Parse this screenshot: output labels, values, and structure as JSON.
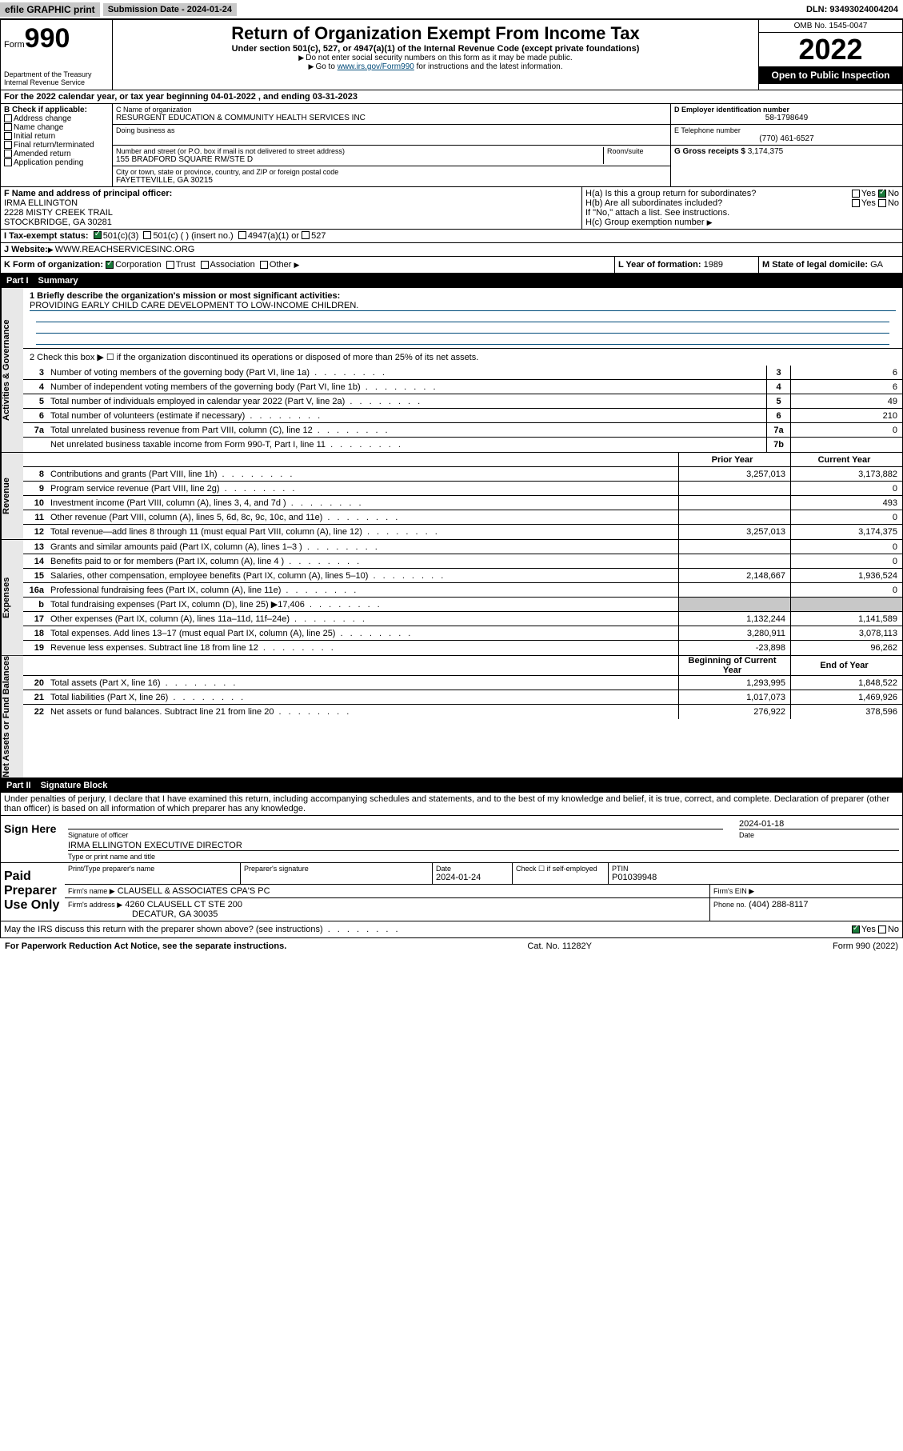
{
  "top": {
    "efile": "efile GRAPHIC print",
    "submission": "Submission Date - 2024-01-24",
    "dln": "DLN: 93493024004204"
  },
  "header": {
    "form_label": "Form",
    "form_number": "990",
    "dept": "Department of the Treasury Internal Revenue Service",
    "title": "Return of Organization Exempt From Income Tax",
    "subtitle": "Under section 501(c), 527, or 4947(a)(1) of the Internal Revenue Code (except private foundations)",
    "note1": "Do not enter social security numbers on this form as it may be made public.",
    "note2_prefix": "Go to ",
    "note2_link": "www.irs.gov/Form990",
    "note2_suffix": " for instructions and the latest information.",
    "omb": "OMB No. 1545-0047",
    "year": "2022",
    "open": "Open to Public Inspection"
  },
  "section_a": "For the 2022 calendar year, or tax year beginning 04-01-2022  , and ending 03-31-2023",
  "section_b": {
    "label": "B Check if applicable:",
    "opts": [
      "Address change",
      "Name change",
      "Initial return",
      "Final return/terminated",
      "Amended return",
      "Application pending"
    ]
  },
  "section_c": {
    "name_label": "C Name of organization",
    "name": "RESURGENT EDUCATION & COMMUNITY HEALTH SERVICES INC",
    "dba_label": "Doing business as",
    "street_label": "Number and street (or P.O. box if mail is not delivered to street address)",
    "room_label": "Room/suite",
    "street": "155 BRADFORD SQUARE RM/STE D",
    "city_label": "City or town, state or province, country, and ZIP or foreign postal code",
    "city": "FAYETTEVILLE, GA  30215"
  },
  "section_d": {
    "label": "D Employer identification number",
    "value": "58-1798649"
  },
  "section_e": {
    "label": "E Telephone number",
    "value": "(770) 461-6527"
  },
  "section_g": {
    "label": "G Gross receipts $",
    "value": "3,174,375"
  },
  "section_f": {
    "label": "F  Name and address of principal officer:",
    "name": "IRMA ELLINGTON",
    "addr1": "2228 MISTY CREEK TRAIL",
    "addr2": "STOCKBRIDGE, GA  30281"
  },
  "section_h": {
    "ha": "H(a)  Is this a group return for subordinates?",
    "hb": "H(b)  Are all subordinates included?",
    "hb_note": "If \"No,\" attach a list. See instructions.",
    "hc": "H(c)  Group exemption number",
    "yes": "Yes",
    "no": "No"
  },
  "section_i": {
    "label": "I  Tax-exempt status:",
    "opts": [
      "501(c)(3)",
      "501(c) (  )  (insert no.)",
      "4947(a)(1) or",
      "527"
    ]
  },
  "section_j": {
    "label": "J  Website:",
    "value": "WWW.REACHSERVICESINC.ORG"
  },
  "section_k": {
    "label": "K Form of organization:",
    "opts": [
      "Corporation",
      "Trust",
      "Association",
      "Other"
    ]
  },
  "section_l": {
    "label": "L Year of formation:",
    "value": "1989"
  },
  "section_m": {
    "label": "M State of legal domicile:",
    "value": "GA"
  },
  "part1": {
    "header_label": "Part I",
    "header_title": "Summary",
    "tabs": {
      "gov": "Activities & Governance",
      "rev": "Revenue",
      "exp": "Expenses",
      "net": "Net Assets or Fund Balances"
    },
    "line1_label": "1  Briefly describe the organization's mission or most significant activities:",
    "line1_text": "PROVIDING EARLY CHILD CARE DEVELOPMENT TO LOW-INCOME CHILDREN.",
    "line2": "2  Check this box ▶ ☐  if the organization discontinued its operations or disposed of more than 25% of its net assets.",
    "lines_gov": [
      {
        "n": "3",
        "desc": "Number of voting members of the governing body (Part VI, line 1a)",
        "box": "3",
        "val": "6"
      },
      {
        "n": "4",
        "desc": "Number of independent voting members of the governing body (Part VI, line 1b)",
        "box": "4",
        "val": "6"
      },
      {
        "n": "5",
        "desc": "Total number of individuals employed in calendar year 2022 (Part V, line 2a)",
        "box": "5",
        "val": "49"
      },
      {
        "n": "6",
        "desc": "Total number of volunteers (estimate if necessary)",
        "box": "6",
        "val": "210"
      },
      {
        "n": "7a",
        "desc": "Total unrelated business revenue from Part VIII, column (C), line 12",
        "box": "7a",
        "val": "0"
      },
      {
        "n": "",
        "desc": "Net unrelated business taxable income from Form 990-T, Part I, line 11",
        "box": "7b",
        "val": ""
      }
    ],
    "col_prior": "Prior Year",
    "col_current": "Current Year",
    "lines_rev": [
      {
        "n": "8",
        "desc": "Contributions and grants (Part VIII, line 1h)",
        "p": "3,257,013",
        "c": "3,173,882"
      },
      {
        "n": "9",
        "desc": "Program service revenue (Part VIII, line 2g)",
        "p": "",
        "c": "0"
      },
      {
        "n": "10",
        "desc": "Investment income (Part VIII, column (A), lines 3, 4, and 7d )",
        "p": "",
        "c": "493"
      },
      {
        "n": "11",
        "desc": "Other revenue (Part VIII, column (A), lines 5, 6d, 8c, 9c, 10c, and 11e)",
        "p": "",
        "c": "0"
      },
      {
        "n": "12",
        "desc": "Total revenue—add lines 8 through 11 (must equal Part VIII, column (A), line 12)",
        "p": "3,257,013",
        "c": "3,174,375"
      }
    ],
    "lines_exp": [
      {
        "n": "13",
        "desc": "Grants and similar amounts paid (Part IX, column (A), lines 1–3 )",
        "p": "",
        "c": "0"
      },
      {
        "n": "14",
        "desc": "Benefits paid to or for members (Part IX, column (A), line 4 )",
        "p": "",
        "c": "0"
      },
      {
        "n": "15",
        "desc": "Salaries, other compensation, employee benefits (Part IX, column (A), lines 5–10)",
        "p": "2,148,667",
        "c": "1,936,524"
      },
      {
        "n": "16a",
        "desc": "Professional fundraising fees (Part IX, column (A), line 11e)",
        "p": "",
        "c": "0"
      },
      {
        "n": "b",
        "desc": "Total fundraising expenses (Part IX, column (D), line 25) ▶17,406",
        "p": "shaded",
        "c": "shaded"
      },
      {
        "n": "17",
        "desc": "Other expenses (Part IX, column (A), lines 11a–11d, 11f–24e)",
        "p": "1,132,244",
        "c": "1,141,589"
      },
      {
        "n": "18",
        "desc": "Total expenses. Add lines 13–17 (must equal Part IX, column (A), line 25)",
        "p": "3,280,911",
        "c": "3,078,113"
      },
      {
        "n": "19",
        "desc": "Revenue less expenses. Subtract line 18 from line 12",
        "p": "-23,898",
        "c": "96,262"
      }
    ],
    "col_begin": "Beginning of Current Year",
    "col_end": "End of Year",
    "lines_net": [
      {
        "n": "20",
        "desc": "Total assets (Part X, line 16)",
        "p": "1,293,995",
        "c": "1,848,522"
      },
      {
        "n": "21",
        "desc": "Total liabilities (Part X, line 26)",
        "p": "1,017,073",
        "c": "1,469,926"
      },
      {
        "n": "22",
        "desc": "Net assets or fund balances. Subtract line 21 from line 20",
        "p": "276,922",
        "c": "378,596"
      }
    ]
  },
  "part2": {
    "header_label": "Part II",
    "header_title": "Signature Block",
    "declaration": "Under penalties of perjury, I declare that I have examined this return, including accompanying schedules and statements, and to the best of my knowledge and belief, it is true, correct, and complete. Declaration of preparer (other than officer) is based on all information of which preparer has any knowledge.",
    "sign_here": "Sign Here",
    "sig_officer": "Signature of officer",
    "sig_date_label": "Date",
    "sig_date": "2024-01-18",
    "sig_name": "IRMA ELLINGTON  EXECUTIVE DIRECTOR",
    "sig_name_label": "Type or print name and title",
    "paid_label": "Paid Preparer Use Only",
    "prep_name_label": "Print/Type preparer's name",
    "prep_sig_label": "Preparer's signature",
    "prep_date_label": "Date",
    "prep_date": "2024-01-24",
    "prep_check": "Check ☐ if self-employed",
    "ptin_label": "PTIN",
    "ptin": "P01039948",
    "firm_name_label": "Firm's name ▶",
    "firm_name": "CLAUSELL & ASSOCIATES CPA'S PC",
    "firm_ein_label": "Firm's EIN ▶",
    "firm_addr_label": "Firm's address ▶",
    "firm_addr": "4260 CLAUSELL CT STE 200",
    "firm_city": "DECATUR, GA  30035",
    "firm_phone_label": "Phone no.",
    "firm_phone": "(404) 288-8117",
    "discuss": "May the IRS discuss this return with the preparer shown above? (see instructions)"
  },
  "footer": {
    "paperwork": "For Paperwork Reduction Act Notice, see the separate instructions.",
    "cat": "Cat. No. 11282Y",
    "form": "Form 990 (2022)"
  }
}
